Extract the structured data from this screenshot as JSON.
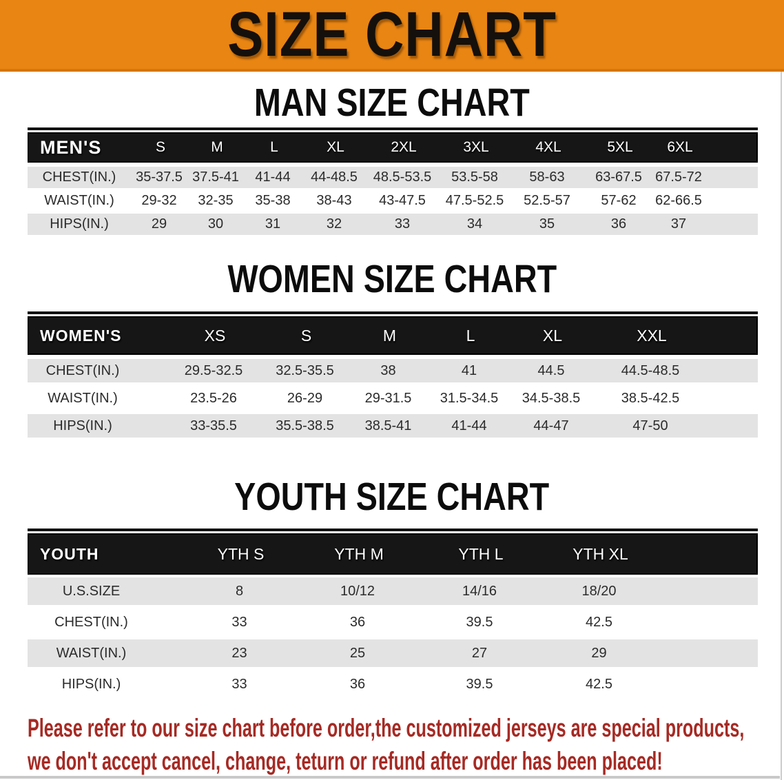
{
  "banner": {
    "title": "SIZE CHART",
    "bg_color": "#E98512",
    "border_color": "#D3750C"
  },
  "colors": {
    "table_header_bg": "#161616",
    "table_header_text": "#ffffff",
    "row_stripe": "#E3E3E3",
    "footer_text": "#A62A24"
  },
  "sections": [
    {
      "heading": "MAN SIZE CHART",
      "table": {
        "header": [
          "MEN'S",
          "S",
          "M",
          "L",
          "XL",
          "2XL",
          "3XL",
          "4XL",
          "5XL",
          "6XL"
        ],
        "rows": [
          {
            "label": "CHEST(IN.)",
            "values": [
              "35-37.5",
              "37.5-41",
              "41-44",
              "44-48.5",
              "48.5-53.5",
              "53.5-58",
              "58-63",
              "63-67.5",
              "67.5-72"
            ]
          },
          {
            "label": "WAIST(IN.)",
            "values": [
              "29-32",
              "32-35",
              "35-38",
              "38-43",
              "43-47.5",
              "47.5-52.5",
              "52.5-57",
              "57-62",
              "62-66.5"
            ]
          },
          {
            "label": "HIPS(IN.)",
            "values": [
              "29",
              "30",
              "31",
              "32",
              "33",
              "34",
              "35",
              "36",
              "37"
            ]
          }
        ]
      }
    },
    {
      "heading": "WOMEN SIZE CHART",
      "table": {
        "header": [
          "WOMEN'S",
          "XS",
          "S",
          "M",
          "L",
          "XL",
          "XXL"
        ],
        "rows": [
          {
            "label": "CHEST(IN.)",
            "values": [
              "29.5-32.5",
              "32.5-35.5",
              "38",
              "41",
              "44.5",
              "44.5-48.5"
            ]
          },
          {
            "label": "WAIST(IN.)",
            "values": [
              "23.5-26",
              "26-29",
              "29-31.5",
              "31.5-34.5",
              "34.5-38.5",
              "38.5-42.5"
            ]
          },
          {
            "label": "HIPS(IN.)",
            "values": [
              "33-35.5",
              "35.5-38.5",
              "38.5-41",
              "41-44",
              "44-47",
              "47-50"
            ]
          }
        ]
      }
    },
    {
      "heading": "YOUTH SIZE CHART",
      "table": {
        "header": [
          "YOUTH",
          "YTH S",
          "YTH M",
          "YTH L",
          "YTH XL"
        ],
        "rows": [
          {
            "label": "U.S.SIZE",
            "values": [
              "8",
              "10/12",
              "14/16",
              "18/20"
            ]
          },
          {
            "label": "CHEST(IN.)",
            "values": [
              "33",
              "36",
              "39.5",
              "42.5"
            ]
          },
          {
            "label": "WAIST(IN.)",
            "values": [
              "23",
              "25",
              "27",
              "29"
            ]
          },
          {
            "label": "HIPS(IN.)",
            "values": [
              "33",
              "36",
              "39.5",
              "42.5"
            ]
          }
        ]
      }
    }
  ],
  "footer": {
    "line1": "Please refer to our size chart before order,the customized jerseys are special products,",
    "line2": "we don't accept cancel, change, teturn or refund after order has been placed!"
  }
}
